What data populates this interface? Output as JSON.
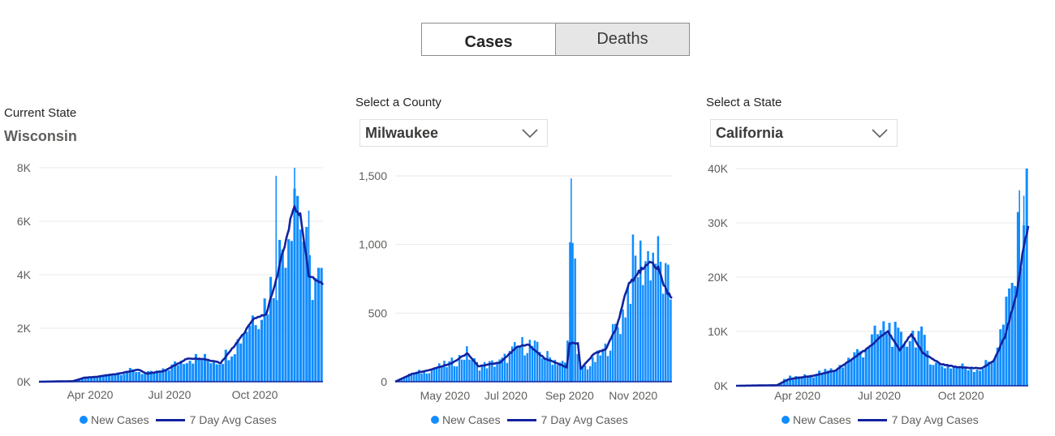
{
  "toggle": {
    "cases_label": "Cases",
    "deaths_label": "Deaths"
  },
  "panels": {
    "state": {
      "caption": "Current State",
      "value": "Wisconsin"
    },
    "county": {
      "caption": "Select a County",
      "value": "Milwaukee"
    },
    "state_select": {
      "caption": "Select a State",
      "value": "California"
    }
  },
  "colors": {
    "bars": "#118dff",
    "avg_line": "#12239e",
    "grid": "#e8e8e8"
  },
  "legend": {
    "new_cases": "New Cases",
    "avg_cases": "7 Day Avg Cases"
  },
  "chart_data": [
    {
      "type": "bar",
      "title": "Wisconsin",
      "x_range": [
        "2020-03-01",
        "2020-12-10"
      ],
      "ylim": [
        0,
        8000
      ],
      "y_ticks": [
        "0K",
        "2K",
        "4K",
        "6K",
        "8K"
      ],
      "x_ticks": [
        "Apr 2020",
        "Jul 2020",
        "Oct 2020"
      ],
      "series": [
        {
          "name": "New Cases",
          "kind": "bar",
          "keypoints": [
            [
              0,
              0
            ],
            [
              0.12,
              30
            ],
            [
              0.15,
              120
            ],
            [
              0.2,
              180
            ],
            [
              0.28,
              350
            ],
            [
              0.34,
              420
            ],
            [
              0.38,
              300
            ],
            [
              0.44,
              400
            ],
            [
              0.52,
              900
            ],
            [
              0.58,
              850
            ],
            [
              0.64,
              800
            ],
            [
              0.7,
              1500
            ],
            [
              0.76,
              2600
            ],
            [
              0.8,
              3000
            ],
            [
              0.84,
              4300
            ],
            [
              0.88,
              6200
            ],
            [
              0.9,
              7800
            ],
            [
              0.92,
              6300
            ],
            [
              0.95,
              4000
            ],
            [
              1,
              3600
            ]
          ]
        },
        {
          "name": "7 Day Avg Cases",
          "kind": "line",
          "keypoints": [
            [
              0,
              0
            ],
            [
              0.12,
              20
            ],
            [
              0.16,
              150
            ],
            [
              0.2,
              180
            ],
            [
              0.28,
              300
            ],
            [
              0.35,
              450
            ],
            [
              0.38,
              300
            ],
            [
              0.44,
              400
            ],
            [
              0.52,
              850
            ],
            [
              0.58,
              850
            ],
            [
              0.64,
              700
            ],
            [
              0.7,
              1500
            ],
            [
              0.76,
              2400
            ],
            [
              0.8,
              2500
            ],
            [
              0.84,
              4000
            ],
            [
              0.88,
              5800
            ],
            [
              0.9,
              6600
            ],
            [
              0.92,
              6200
            ],
            [
              0.95,
              4000
            ],
            [
              1,
              3600
            ]
          ]
        }
      ]
    },
    {
      "type": "bar",
      "title": "Milwaukee",
      "x_range": [
        "2020-03-15",
        "2020-12-10"
      ],
      "ylim": [
        0,
        1600
      ],
      "y_ticks": [
        "0",
        "500",
        "1,000",
        "1,500"
      ],
      "x_ticks": [
        "May 2020",
        "Jul 2020",
        "Sep 2020",
        "Nov 2020"
      ],
      "series": [
        {
          "name": "New Cases",
          "kind": "bar",
          "keypoints": [
            [
              0,
              0
            ],
            [
              0.06,
              60
            ],
            [
              0.12,
              90
            ],
            [
              0.2,
              140
            ],
            [
              0.26,
              220
            ],
            [
              0.3,
              120
            ],
            [
              0.38,
              150
            ],
            [
              0.44,
              260
            ],
            [
              0.48,
              300
            ],
            [
              0.54,
              200
            ],
            [
              0.6,
              150
            ],
            [
              0.62,
              120
            ],
            [
              0.64,
              1580
            ],
            [
              0.66,
              110
            ],
            [
              0.7,
              120
            ],
            [
              0.76,
              250
            ],
            [
              0.82,
              500
            ],
            [
              0.86,
              900
            ],
            [
              0.9,
              950
            ],
            [
              0.94,
              1000
            ],
            [
              0.97,
              780
            ],
            [
              1,
              650
            ]
          ]
        },
        {
          "name": "7 Day Avg Cases",
          "kind": "line",
          "keypoints": [
            [
              0,
              0
            ],
            [
              0.06,
              60
            ],
            [
              0.12,
              90
            ],
            [
              0.2,
              140
            ],
            [
              0.26,
              220
            ],
            [
              0.3,
              120
            ],
            [
              0.38,
              150
            ],
            [
              0.44,
              270
            ],
            [
              0.48,
              290
            ],
            [
              0.54,
              180
            ],
            [
              0.6,
              130
            ],
            [
              0.62,
              110
            ],
            [
              0.63,
              300
            ],
            [
              0.66,
              300
            ],
            [
              0.67,
              100
            ],
            [
              0.72,
              220
            ],
            [
              0.76,
              250
            ],
            [
              0.8,
              420
            ],
            [
              0.84,
              740
            ],
            [
              0.88,
              850
            ],
            [
              0.92,
              930
            ],
            [
              0.95,
              880
            ],
            [
              0.98,
              700
            ],
            [
              1,
              650
            ]
          ]
        }
      ]
    },
    {
      "type": "bar",
      "title": "California",
      "x_range": [
        "2020-03-01",
        "2020-12-10"
      ],
      "ylim": [
        0,
        40000
      ],
      "y_ticks": [
        "0K",
        "10K",
        "20K",
        "30K",
        "40K"
      ],
      "x_ticks": [
        "Apr 2020",
        "Jul 2020",
        "Oct 2020"
      ],
      "series": [
        {
          "name": "New Cases",
          "kind": "bar",
          "keypoints": [
            [
              0,
              0
            ],
            [
              0.14,
              100
            ],
            [
              0.18,
              1500
            ],
            [
              0.26,
              2000
            ],
            [
              0.34,
              3000
            ],
            [
              0.44,
              7000
            ],
            [
              0.52,
              11000
            ],
            [
              0.56,
              8000
            ],
            [
              0.62,
              10000
            ],
            [
              0.68,
              4000
            ],
            [
              0.76,
              3500
            ],
            [
              0.84,
              3200
            ],
            [
              0.88,
              5000
            ],
            [
              0.92,
              12000
            ],
            [
              0.96,
              22000
            ],
            [
              0.98,
              33000
            ],
            [
              1,
              36000
            ]
          ]
        },
        {
          "name": "7 Day Avg Cases",
          "kind": "line",
          "keypoints": [
            [
              0,
              0
            ],
            [
              0.14,
              100
            ],
            [
              0.18,
              1200
            ],
            [
              0.26,
              1800
            ],
            [
              0.34,
              2800
            ],
            [
              0.44,
              6500
            ],
            [
              0.52,
              10000
            ],
            [
              0.56,
              6500
            ],
            [
              0.6,
              9500
            ],
            [
              0.64,
              6000
            ],
            [
              0.7,
              4000
            ],
            [
              0.76,
              3400
            ],
            [
              0.84,
              3200
            ],
            [
              0.88,
              4500
            ],
            [
              0.92,
              9000
            ],
            [
              0.96,
              17000
            ],
            [
              0.98,
              24000
            ],
            [
              1,
              29500
            ]
          ]
        }
      ]
    }
  ]
}
